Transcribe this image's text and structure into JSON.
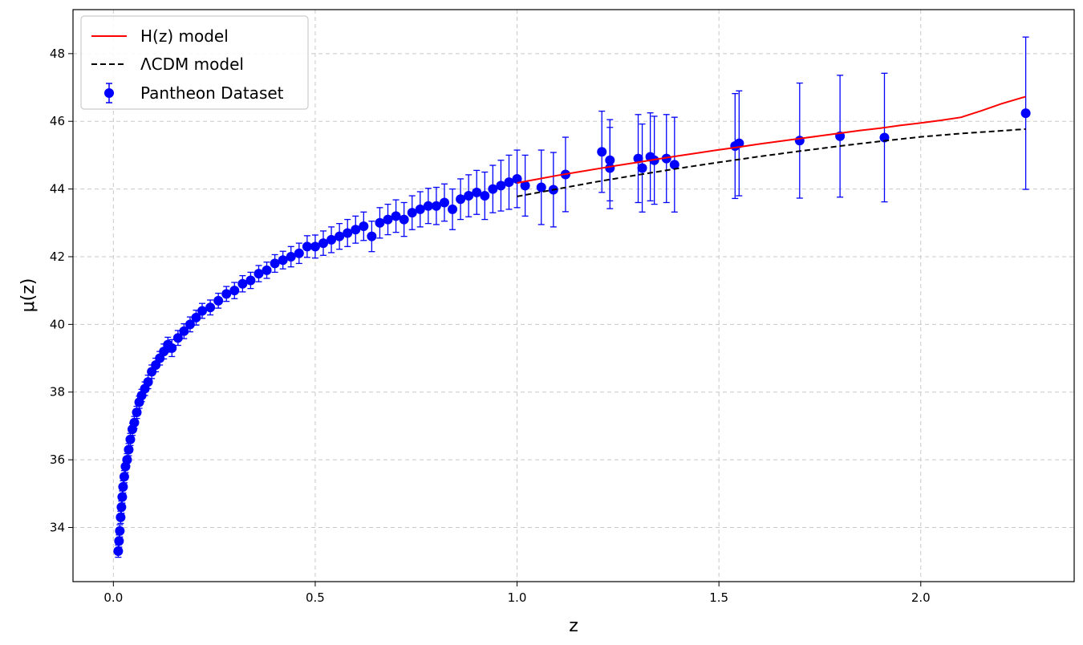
{
  "chart_data": {
    "type": "scatter",
    "xlabel": "z",
    "ylabel": "μ(z)",
    "xlim": [
      -0.1,
      2.38
    ],
    "ylim": [
      32.4,
      49.3
    ],
    "xticks": [
      "0.0",
      "0.5",
      "1.0",
      "1.5",
      "2.0"
    ],
    "yticks": [
      "34",
      "36",
      "38",
      "40",
      "42",
      "44",
      "46",
      "48"
    ],
    "grid": true,
    "legend_position": "top-left",
    "colors": {
      "hz_model": "#ff0000",
      "lcdm_model": "#000000",
      "pantheon": "#0000ff",
      "grid": "#c8c8c8"
    },
    "series": [
      {
        "name": "H(z) model",
        "style": "solid-line",
        "x": [
          1.0,
          1.05,
          1.1,
          1.15,
          1.2,
          1.25,
          1.3,
          1.35,
          1.4,
          1.45,
          1.5,
          1.55,
          1.6,
          1.65,
          1.7,
          1.75,
          1.8,
          1.85,
          1.9,
          1.95,
          2.0,
          2.05,
          2.1,
          2.15,
          2.2,
          2.26
        ],
        "y": [
          44.18,
          44.29,
          44.4,
          44.5,
          44.6,
          44.7,
          44.79,
          44.89,
          44.98,
          45.07,
          45.16,
          45.24,
          45.33,
          45.41,
          45.49,
          45.57,
          45.65,
          45.73,
          45.8,
          45.88,
          45.95,
          46.03,
          46.12,
          46.31,
          46.52,
          46.73
        ]
      },
      {
        "name": "ΛCDM model",
        "style": "dashed-line",
        "x": [
          1.0,
          1.1,
          1.2,
          1.3,
          1.4,
          1.5,
          1.6,
          1.7,
          1.8,
          1.9,
          2.0,
          2.1,
          2.2,
          2.26
        ],
        "y": [
          43.78,
          44.0,
          44.22,
          44.42,
          44.61,
          44.79,
          44.96,
          45.12,
          45.27,
          45.41,
          45.54,
          45.64,
          45.72,
          45.77
        ]
      },
      {
        "name": "Pantheon Dataset",
        "style": "errorbar-points",
        "points": [
          [
            0.012,
            33.3,
            0.18
          ],
          [
            0.014,
            33.6,
            0.18
          ],
          [
            0.016,
            33.9,
            0.18
          ],
          [
            0.018,
            34.3,
            0.18
          ],
          [
            0.02,
            34.6,
            0.18
          ],
          [
            0.022,
            34.9,
            0.18
          ],
          [
            0.024,
            35.2,
            0.18
          ],
          [
            0.027,
            35.5,
            0.18
          ],
          [
            0.03,
            35.8,
            0.18
          ],
          [
            0.034,
            36.0,
            0.18
          ],
          [
            0.038,
            36.3,
            0.18
          ],
          [
            0.042,
            36.6,
            0.18
          ],
          [
            0.047,
            36.9,
            0.18
          ],
          [
            0.052,
            37.1,
            0.18
          ],
          [
            0.058,
            37.4,
            0.18
          ],
          [
            0.064,
            37.7,
            0.18
          ],
          [
            0.07,
            37.9,
            0.18
          ],
          [
            0.078,
            38.1,
            0.2
          ],
          [
            0.086,
            38.3,
            0.2
          ],
          [
            0.095,
            38.6,
            0.2
          ],
          [
            0.105,
            38.8,
            0.2
          ],
          [
            0.115,
            39.0,
            0.2
          ],
          [
            0.125,
            39.2,
            0.22
          ],
          [
            0.135,
            39.4,
            0.22
          ],
          [
            0.145,
            39.3,
            0.25
          ],
          [
            0.16,
            39.6,
            0.22
          ],
          [
            0.175,
            39.8,
            0.22
          ],
          [
            0.19,
            40.0,
            0.22
          ],
          [
            0.205,
            40.2,
            0.22
          ],
          [
            0.22,
            40.4,
            0.22
          ],
          [
            0.24,
            40.5,
            0.22
          ],
          [
            0.26,
            40.7,
            0.22
          ],
          [
            0.28,
            40.9,
            0.22
          ],
          [
            0.3,
            41.0,
            0.24
          ],
          [
            0.32,
            41.2,
            0.24
          ],
          [
            0.34,
            41.3,
            0.24
          ],
          [
            0.36,
            41.5,
            0.24
          ],
          [
            0.38,
            41.6,
            0.24
          ],
          [
            0.4,
            41.8,
            0.26
          ],
          [
            0.42,
            41.9,
            0.26
          ],
          [
            0.44,
            42.0,
            0.3
          ],
          [
            0.46,
            42.1,
            0.3
          ],
          [
            0.48,
            42.3,
            0.32
          ],
          [
            0.5,
            42.3,
            0.34
          ],
          [
            0.52,
            42.4,
            0.36
          ],
          [
            0.54,
            42.5,
            0.38
          ],
          [
            0.56,
            42.6,
            0.38
          ],
          [
            0.58,
            42.7,
            0.4
          ],
          [
            0.6,
            42.8,
            0.4
          ],
          [
            0.62,
            42.9,
            0.42
          ],
          [
            0.64,
            42.6,
            0.45
          ],
          [
            0.66,
            43.0,
            0.45
          ],
          [
            0.68,
            43.1,
            0.45
          ],
          [
            0.7,
            43.2,
            0.48
          ],
          [
            0.72,
            43.1,
            0.5
          ],
          [
            0.74,
            43.3,
            0.5
          ],
          [
            0.76,
            43.4,
            0.52
          ],
          [
            0.78,
            43.5,
            0.52
          ],
          [
            0.8,
            43.5,
            0.55
          ],
          [
            0.82,
            43.6,
            0.55
          ],
          [
            0.84,
            43.4,
            0.6
          ],
          [
            0.86,
            43.7,
            0.6
          ],
          [
            0.88,
            43.8,
            0.62
          ],
          [
            0.9,
            43.9,
            0.65
          ],
          [
            0.92,
            43.8,
            0.7
          ],
          [
            0.94,
            44.0,
            0.7
          ],
          [
            0.96,
            44.1,
            0.75
          ],
          [
            0.98,
            44.2,
            0.8
          ],
          [
            1.0,
            44.3,
            0.85
          ],
          [
            1.02,
            44.1,
            0.9
          ],
          [
            1.06,
            44.05,
            1.1
          ],
          [
            1.09,
            43.98,
            1.1
          ],
          [
            1.12,
            44.43,
            1.1
          ],
          [
            1.21,
            45.1,
            1.2
          ],
          [
            1.23,
            44.85,
            1.2
          ],
          [
            1.23,
            44.62,
            1.2
          ],
          [
            1.3,
            44.9,
            1.3
          ],
          [
            1.31,
            44.62,
            1.3
          ],
          [
            1.33,
            44.95,
            1.3
          ],
          [
            1.34,
            44.85,
            1.3
          ],
          [
            1.37,
            44.9,
            1.3
          ],
          [
            1.39,
            44.72,
            1.4
          ],
          [
            1.54,
            45.27,
            1.55
          ],
          [
            1.55,
            45.35,
            1.55
          ],
          [
            1.7,
            45.43,
            1.7
          ],
          [
            1.8,
            45.56,
            1.8
          ],
          [
            1.91,
            45.52,
            1.9
          ],
          [
            2.26,
            46.24,
            2.25
          ]
        ]
      }
    ]
  }
}
